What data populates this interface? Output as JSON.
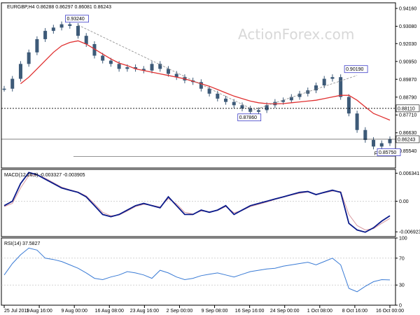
{
  "header": {
    "symbol": "EURGBP,H4",
    "ohlc": "0.86288 0.86297 0.86081 0.86243"
  },
  "watermark": "ActionForex.com",
  "chart_data": [
    {
      "type": "line",
      "name": "price",
      "ylim": [
        0.845,
        0.945
      ],
      "yticks": [
        "0.94160",
        "0.93080",
        "0.92030",
        "0.90950",
        "0.89870",
        "0.88790",
        "0.87710",
        "0.86630",
        "0.85540"
      ],
      "ytick_values": [
        0.9416,
        0.9308,
        0.9203,
        0.9095,
        0.8987,
        0.8879,
        0.8771,
        0.8663,
        0.8554
      ],
      "xticks": [
        "25 Jul 2019",
        "1 Aug 16:00",
        "9 Aug 00:00",
        "16 Aug 08:00",
        "23 Aug 16:00",
        "2 Sep 00:00",
        "9 Sep 08:00",
        "16 Sep 16:00",
        "24 Sep 00:00",
        "1 Oct 08:00",
        "8 Oct 16:00",
        "16 Oct 00:00"
      ],
      "close_series": [
        0.893,
        0.899,
        0.908,
        0.915,
        0.923,
        0.928,
        0.93,
        0.932,
        0.931,
        0.925,
        0.92,
        0.913,
        0.91,
        0.908,
        0.905,
        0.906,
        0.905,
        0.904,
        0.908,
        0.905,
        0.902,
        0.9,
        0.898,
        0.897,
        0.893,
        0.89,
        0.887,
        0.885,
        0.883,
        0.881,
        0.879,
        0.88,
        0.883,
        0.885,
        0.886,
        0.888,
        0.89,
        0.892,
        0.895,
        0.899,
        0.9,
        0.888,
        0.878,
        0.868,
        0.862,
        0.858,
        0.86,
        0.8624
      ],
      "ma_series": [
        0.896,
        0.9,
        0.905,
        0.91,
        0.915,
        0.919,
        0.921,
        0.922,
        0.92,
        0.917,
        0.914,
        0.911,
        0.9085,
        0.907,
        0.905,
        0.904,
        0.903,
        0.902,
        0.901,
        0.9,
        0.899,
        0.8975,
        0.896,
        0.8945,
        0.8925,
        0.8905,
        0.8885,
        0.887,
        0.8855,
        0.8845,
        0.884,
        0.8838,
        0.884,
        0.8845,
        0.885,
        0.8855,
        0.886,
        0.887,
        0.888,
        0.889,
        0.889,
        0.886,
        0.882,
        0.878,
        0.876,
        0.874
      ],
      "annotations": [
        {
          "text": "0.93240",
          "x": "9 Aug 00:00",
          "y": 0.9324
        },
        {
          "text": "0.87860",
          "x": "16 Sep 16:00",
          "y": 0.8786
        },
        {
          "text": "0.90190",
          "x": "8 Oct 16:00",
          "y": 0.9019
        },
        {
          "text": "0.85750",
          "x": "16 Oct 00:00",
          "y": 0.8575
        }
      ],
      "level_labels": [
        {
          "text": "0.88110",
          "y": 0.8811,
          "color": "#000000"
        },
        {
          "text": "0.86243",
          "y": 0.8624,
          "color": "#000000"
        }
      ],
      "fe_label": "FE 100.0",
      "fe_level": 0.852
    },
    {
      "type": "line",
      "name": "MACD",
      "title": "MACD(12,26,9) -0.003327 -0.003905",
      "ylim": [
        -0.008,
        0.0072
      ],
      "yticks": [
        "0.006341",
        "0.00",
        "-0.006923"
      ],
      "ytick_values": [
        0.006341,
        0.0,
        -0.006923
      ],
      "macd_series": [
        -0.001,
        0.0,
        0.004,
        0.0065,
        0.006,
        0.005,
        0.004,
        0.003,
        0.0025,
        0.002,
        0.001,
        -0.001,
        -0.003,
        -0.0035,
        -0.003,
        -0.002,
        -0.001,
        -0.0005,
        -0.001,
        -0.0015,
        0.001,
        -0.001,
        -0.003,
        -0.003,
        -0.002,
        -0.0025,
        -0.002,
        -0.001,
        -0.003,
        -0.002,
        -0.001,
        -0.0005,
        0.0,
        0.0005,
        0.001,
        0.0015,
        0.002,
        0.0022,
        0.0015,
        0.002,
        0.0025,
        0.002,
        -0.005,
        -0.0065,
        -0.007,
        -0.006,
        -0.0045,
        -0.0033
      ],
      "signal_series": [
        -0.0012,
        -0.0005,
        0.003,
        0.0058,
        0.006,
        0.0052,
        0.0042,
        0.0032,
        0.0026,
        0.0021,
        0.0012,
        -0.0006,
        -0.0025,
        -0.0033,
        -0.0031,
        -0.0022,
        -0.0012,
        -0.0007,
        -0.0009,
        -0.0013,
        0.0006,
        -0.0006,
        -0.0025,
        -0.0029,
        -0.0022,
        -0.0024,
        -0.0021,
        -0.0012,
        -0.0026,
        -0.0021,
        -0.0012,
        -0.0007,
        -0.0002,
        0.0004,
        0.0009,
        0.0014,
        0.0018,
        0.0021,
        0.0016,
        0.0019,
        0.0023,
        0.0022,
        -0.003,
        -0.0055,
        -0.0065,
        -0.0062,
        -0.005,
        -0.0039
      ]
    },
    {
      "type": "line",
      "name": "RSI",
      "title": "RSI(14) 37.5827",
      "ylim": [
        0,
        100
      ],
      "yticks": [
        "100",
        "70",
        "30",
        "0"
      ],
      "ytick_values": [
        100,
        70,
        30,
        0
      ],
      "levels": [
        70,
        30
      ],
      "series": [
        45,
        62,
        75,
        85,
        82,
        70,
        68,
        65,
        60,
        55,
        48,
        40,
        38,
        42,
        45,
        50,
        48,
        45,
        40,
        52,
        48,
        42,
        38,
        40,
        44,
        46,
        48,
        45,
        42,
        46,
        50,
        52,
        54,
        55,
        58,
        60,
        62,
        64,
        60,
        65,
        70,
        60,
        25,
        20,
        28,
        35,
        38,
        37.6
      ]
    }
  ]
}
